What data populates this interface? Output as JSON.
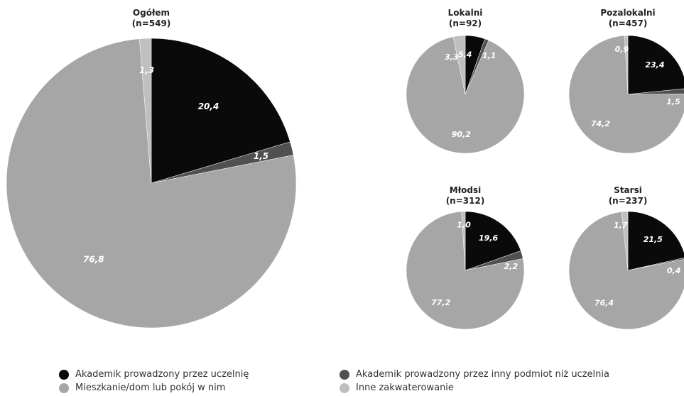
{
  "colors": {
    "academic_uni": "#0a0a0a",
    "academic_other": "#505050",
    "apartment": "#a6a6a6",
    "other": "#bfbfbf"
  },
  "legend": [
    {
      "key": "academic_uni",
      "label": "Akademik prowadzony przez uczelnię"
    },
    {
      "key": "academic_other",
      "label": "Akademik prowadzony przez inny podmiot niż uczelnia"
    },
    {
      "key": "apartment",
      "label": "Mieszkanie/dom lub pokój w nim"
    },
    {
      "key": "other",
      "label": "Inne zakwaterowanie"
    }
  ],
  "chart_data": [
    {
      "type": "pie",
      "title": "Ogółem",
      "subtitle": "(n=549)",
      "slices": [
        {
          "key": "academic_uni",
          "value": 20.4,
          "label": "20,4"
        },
        {
          "key": "academic_other",
          "value": 1.5,
          "label": "1,5"
        },
        {
          "key": "apartment",
          "value": 76.8,
          "label": "76,8"
        },
        {
          "key": "other",
          "value": 1.3,
          "label": "1,3"
        }
      ]
    },
    {
      "type": "pie",
      "title": "Lokalni",
      "subtitle": "(n=92)",
      "slices": [
        {
          "key": "academic_uni",
          "value": 5.4,
          "label": "5,4"
        },
        {
          "key": "academic_other",
          "value": 1.1,
          "label": "1,1"
        },
        {
          "key": "apartment",
          "value": 90.2,
          "label": "90,2"
        },
        {
          "key": "other",
          "value": 3.3,
          "label": "3,3"
        }
      ]
    },
    {
      "type": "pie",
      "title": "Pozalokalni",
      "subtitle": "(n=457)",
      "slices": [
        {
          "key": "academic_uni",
          "value": 23.4,
          "label": "23,4"
        },
        {
          "key": "academic_other",
          "value": 1.5,
          "label": "1,5"
        },
        {
          "key": "apartment",
          "value": 74.2,
          "label": "74,2"
        },
        {
          "key": "other",
          "value": 0.9,
          "label": "0,9"
        }
      ]
    },
    {
      "type": "pie",
      "title": "Młodsi",
      "subtitle": "(n=312)",
      "slices": [
        {
          "key": "academic_uni",
          "value": 19.6,
          "label": "19,6"
        },
        {
          "key": "academic_other",
          "value": 2.2,
          "label": "2,2"
        },
        {
          "key": "apartment",
          "value": 77.2,
          "label": "77,2"
        },
        {
          "key": "other",
          "value": 1.0,
          "label": "1,0"
        }
      ]
    },
    {
      "type": "pie",
      "title": "Starsi",
      "subtitle": "(n=237)",
      "slices": [
        {
          "key": "academic_uni",
          "value": 21.5,
          "label": "21,5"
        },
        {
          "key": "academic_other",
          "value": 0.4,
          "label": "0,4"
        },
        {
          "key": "apartment",
          "value": 76.4,
          "label": "76,4"
        },
        {
          "key": "other",
          "value": 1.7,
          "label": "1,7"
        }
      ]
    }
  ]
}
